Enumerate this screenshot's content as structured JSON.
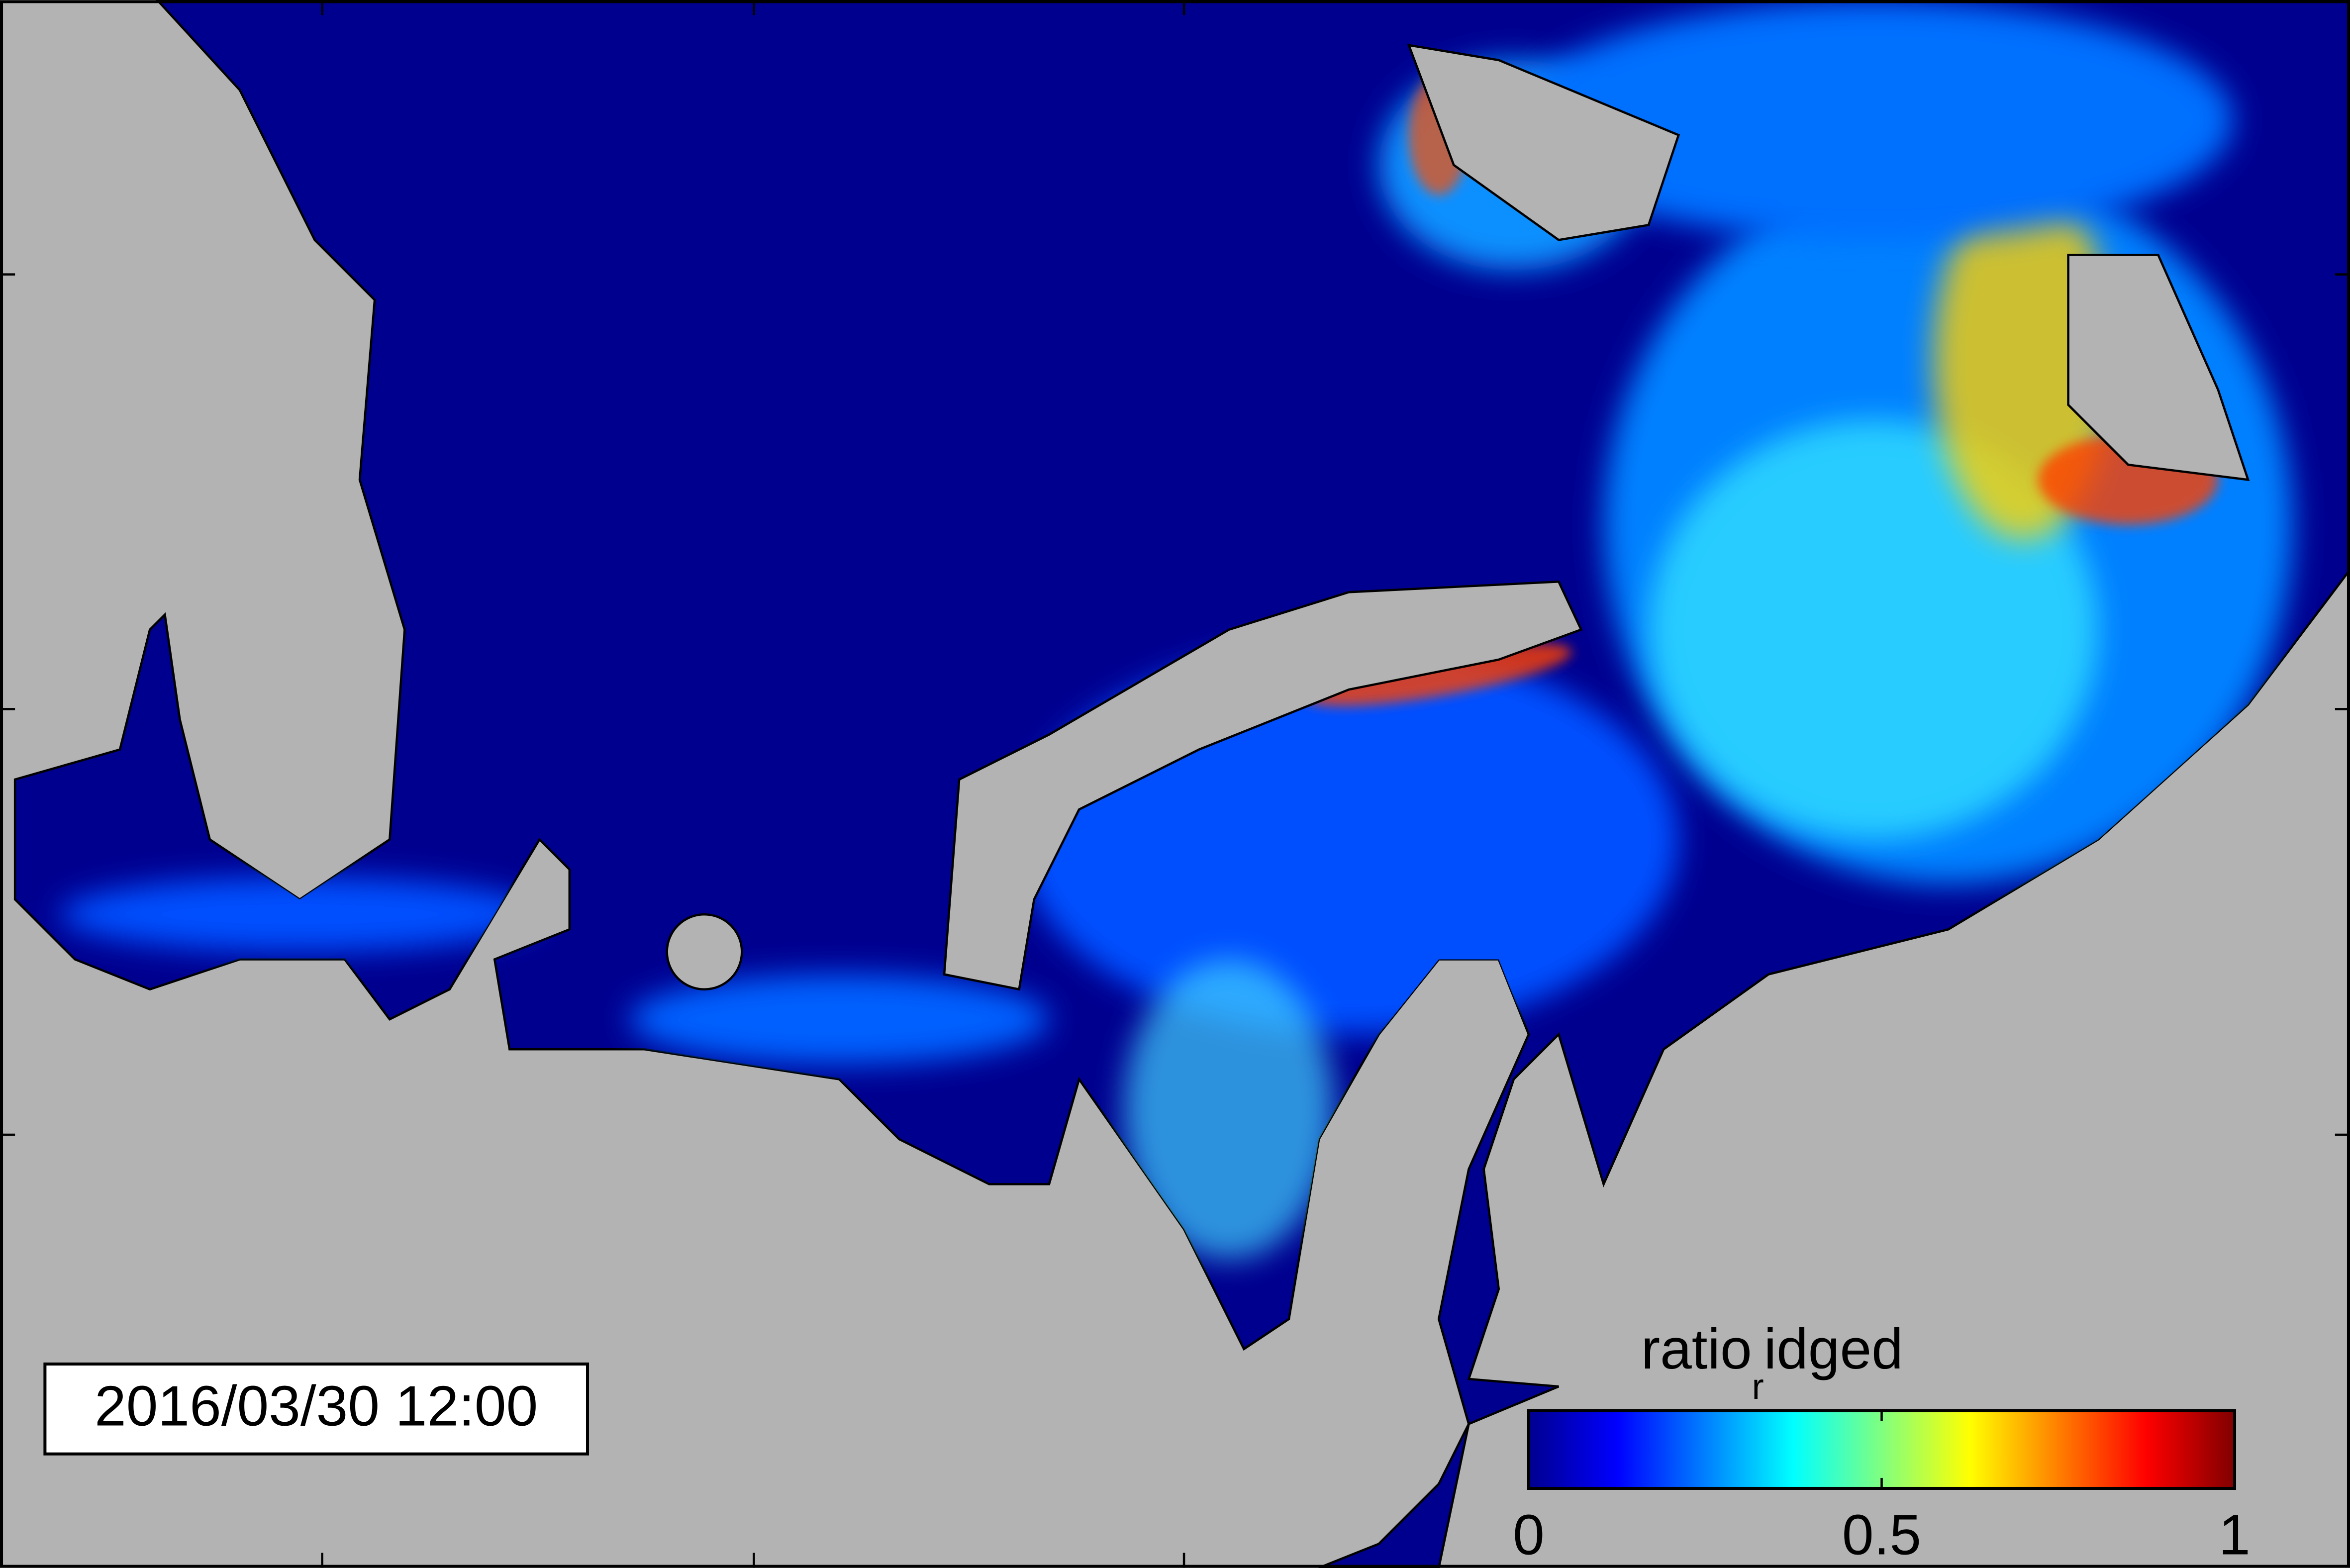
{
  "timestamp": "2016/03/30 12:00",
  "colorbar": {
    "title": {
      "main": "ratio",
      "sub": "r",
      "rest": "idged"
    },
    "lim": [
      0,
      1
    ],
    "ticks": [
      0,
      0.5,
      1
    ]
  }
}
